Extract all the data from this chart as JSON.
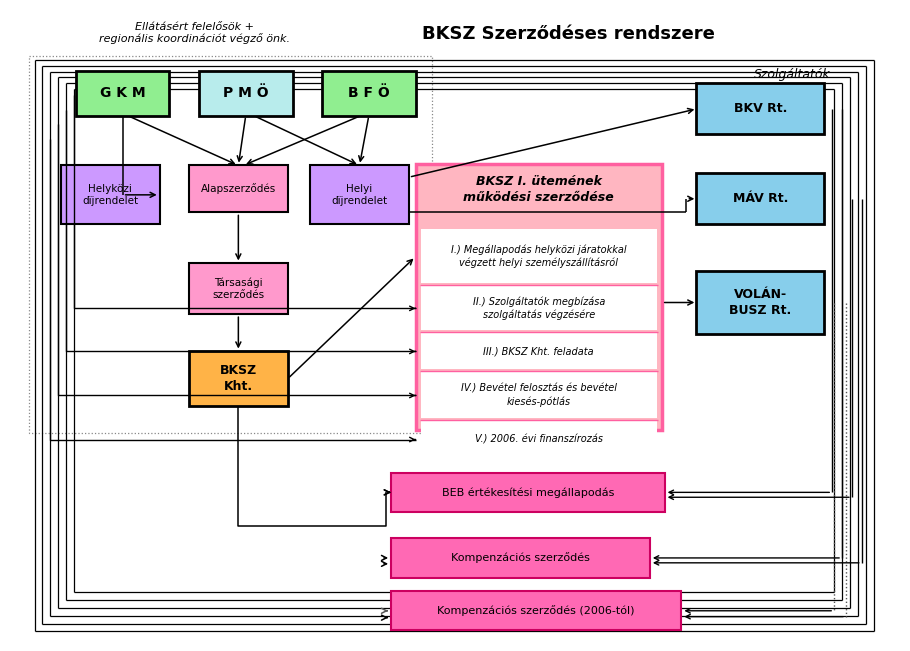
{
  "title": "BKSZ Szerződéses rendszere",
  "sub1": "Ellátásért felelősök +",
  "sub2": "regionális koordinációt végző önk.",
  "srv_lbl": "Szolgáltatók:",
  "GKM_txt": "G K M",
  "PMO_txt": "P M Ö",
  "BFO_txt": "B F Ö",
  "hk_txt": "Helyközi\ndïjrendelet",
  "al_txt": "Alapszerződés",
  "hy_txt": "Helyi\ndïjrendelet",
  "ts_txt": "Társasági\nszerződés",
  "kht_txt": "BKSZ\nKht.",
  "bksz_title": "BKSZ I. ütemének\nműködési szerződése",
  "items": [
    "I.) Megállapodás helyközi járatokkal\nvégzett helyi személyszállításról",
    "II.) Szolgáltatók megbízása\nszolgáltatás végzésére",
    "III.) BKSZ Kht. feladata",
    "IV.) Bevétel felosztás és bevétel\nkiesés-pótlás",
    "V.) 2006. évi finanszírozás"
  ],
  "item_heights": [
    58,
    48,
    40,
    50,
    40
  ],
  "BKV_txt": "BKV Rt.",
  "MAV_txt": "MÁV Rt.",
  "VOL_txt": "VOLÁN-\nBUSZ Rt.",
  "BEB_txt": "BEB értékesítési megállapodás",
  "K1_txt": "Kompenzációs szerződés",
  "K2_txt": "Kompenzációs szerződés (2006-tól)",
  "col_green": "#90EE90",
  "col_cyan": "#b8ecec",
  "col_purple": "#CC99FF",
  "col_pink_light": "#FF99CC",
  "col_orange": "#FFB347",
  "col_main_pink": "#FFB6C1",
  "col_main_border": "#FF60A0",
  "col_blue": "#87CEEB",
  "col_hot_pink": "#FF69B4",
  "col_hot_border": "#CC0060"
}
